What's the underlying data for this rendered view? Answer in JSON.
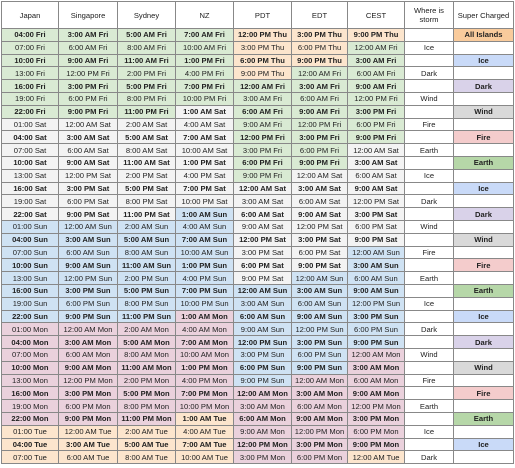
{
  "header": {
    "columns": [
      "Japan",
      "Singapore",
      "Sydney",
      "NZ",
      "PDT",
      "EDT",
      "CEST",
      "Where is storm",
      "Super Charged"
    ]
  },
  "day_colors": {
    "Thu": "#fce5cd",
    "Fri": "#d9ead3",
    "Sat": "#f3f3f3",
    "Sun": "#cfe2f3",
    "Mon": "#ead1dc",
    "Tue": "#fce5cd"
  },
  "super_colors": {
    "All Islands": "#f9cb9c",
    "Ice": "#c9daf8",
    "Dark": "#d9d2e9",
    "Wind": "#d9d9d9",
    "Fire": "#f4cccc",
    "Earth": "#b6d7a8"
  },
  "table": {
    "rows": [
      [
        "04:00 Fri",
        "3:00 AM Fri",
        "5:00 AM Fri",
        "7:00 AM Fri",
        "12:00 PM Thu",
        "3:00 PM Thu",
        "9:00 PM Thu",
        null,
        "All Islands"
      ],
      [
        "07:00 Fri",
        "6:00 AM Fri",
        "8:00 AM Fri",
        "10:00 AM Fri",
        "3:00 PM Thu",
        "6:00 PM Thu",
        "12:00 AM Fri",
        "Ice",
        null
      ],
      [
        "10:00 Fri",
        "9:00 AM Fri",
        "11:00 AM Fri",
        "1:00 PM Fri",
        "6:00 PM Thu",
        "9:00 PM Thu",
        "3:00 AM Fri",
        null,
        "Ice"
      ],
      [
        "13:00 Fri",
        "12:00 PM Fri",
        "2:00 PM Fri",
        "4:00 PM Fri",
        "9:00 PM Thu",
        "12:00 AM Fri",
        "6:00 AM Fri",
        "Dark",
        null
      ],
      [
        "16:00 Fri",
        "3:00 PM Fri",
        "5:00 PM Fri",
        "7:00 PM Fri",
        "12:00 AM Fri",
        "3:00 AM Fri",
        "9:00 AM Fri",
        null,
        "Dark"
      ],
      [
        "19:00 Fri",
        "6:00 PM Fri",
        "8:00 PM Fri",
        "10:00 PM Fri",
        "3:00 AM Fri",
        "6:00 AM Fri",
        "12:00 PM Fri",
        "Wind",
        null
      ],
      [
        "22:00 Fri",
        "9:00 PM Fri",
        "11:00 PM Fri",
        "1:00 AM Sat",
        "6:00 AM Fri",
        "9:00 AM Fri",
        "3:00 PM Fri",
        null,
        "Wind"
      ],
      [
        "01:00 Sat",
        "12:00 AM Sat",
        "2:00 AM Sat",
        "4:00 AM Sat",
        "9:00 AM Fri",
        "12:00 PM Fri",
        "6:00 PM Fri",
        "Fire",
        null
      ],
      [
        "04:00 Sat",
        "3:00 AM Sat",
        "5:00 AM Sat",
        "7:00 AM Sat",
        "12:00 PM Fri",
        "3:00 PM Fri",
        "9:00 PM Fri",
        null,
        "Fire"
      ],
      [
        "07:00 Sat",
        "6:00 AM Sat",
        "8:00 AM Sat",
        "10:00 AM Sat",
        "3:00 PM Fri",
        "6:00 PM Fri",
        "12:00 AM Sat",
        "Earth",
        null
      ],
      [
        "10:00 Sat",
        "9:00 AM Sat",
        "11:00 AM Sat",
        "1:00 PM Sat",
        "6:00 PM Fri",
        "9:00 PM Fri",
        "3:00 AM Sat",
        null,
        "Earth"
      ],
      [
        "13:00 Sat",
        "12:00 PM Sat",
        "2:00 PM Sat",
        "4:00 PM Sat",
        "9:00 PM Fri",
        "12:00 AM Sat",
        "6:00 AM Sat",
        "Ice",
        null
      ],
      [
        "16:00 Sat",
        "3:00 PM Sat",
        "5:00 PM Sat",
        "7:00 PM Sat",
        "12:00 AM Sat",
        "3:00 AM Sat",
        "9:00 AM Sat",
        null,
        "Ice"
      ],
      [
        "19:00 Sat",
        "6:00 PM Sat",
        "8:00 PM Sat",
        "10:00 PM Sat",
        "3:00 AM Sat",
        "6:00 AM Sat",
        "12:00 PM Sat",
        "Dark",
        null
      ],
      [
        "22:00 Sat",
        "9:00 PM Sat",
        "11:00 PM Sat",
        "1:00 AM Sun",
        "6:00 AM Sat",
        "9:00 AM Sat",
        "3:00 PM Sat",
        null,
        "Dark"
      ],
      [
        "01:00 Sun",
        "12:00 AM Sun",
        "2:00 AM Sun",
        "4:00 AM Sun",
        "9:00 AM Sat",
        "12:00 PM Sat",
        "6:00 PM Sat",
        "Wind",
        null
      ],
      [
        "04:00 Sun",
        "3:00 AM Sun",
        "5:00 AM Sun",
        "7:00 AM Sun",
        "12:00 PM Sat",
        "3:00 PM Sat",
        "9:00 PM Sat",
        null,
        "Wind"
      ],
      [
        "07:00 Sun",
        "6:00 AM Sun",
        "8:00 AM Sun",
        "10:00 AM Sun",
        "3:00 PM Sat",
        "6:00 PM Sat",
        "12:00 AM Sun",
        "Fire",
        null
      ],
      [
        "10:00 Sun",
        "9:00 AM Sun",
        "11:00 AM Sun",
        "1:00 PM Sun",
        "6:00 PM Sat",
        "9:00 PM Sat",
        "3:00 AM Sun",
        null,
        "Fire"
      ],
      [
        "13:00 Sun",
        "12:00 PM Sun",
        "2:00 PM Sun",
        "4:00 PM Sun",
        "9:00 PM Sat",
        "12:00 AM Sun",
        "6:00 AM Sun",
        "Earth",
        null
      ],
      [
        "16:00 Sun",
        "3:00 PM Sun",
        "5:00 PM Sun",
        "7:00 PM Sun",
        "12:00 AM Sun",
        "3:00 AM Sun",
        "9:00 AM Sun",
        null,
        "Earth"
      ],
      [
        "19:00 Sun",
        "6:00 PM Sun",
        "8:00 PM Sun",
        "10:00 PM Sun",
        "3:00 AM Sun",
        "6:00 AM Sun",
        "12:00 PM Sun",
        "Ice",
        null
      ],
      [
        "22:00 Sun",
        "9:00 PM Sun",
        "11:00 PM Sun",
        "1:00 AM Mon",
        "6:00 AM Sun",
        "9:00 AM Sun",
        "3:00 PM Sun",
        null,
        "Ice"
      ],
      [
        "01:00 Mon",
        "12:00 AM Mon",
        "2:00 AM Mon",
        "4:00 AM Mon",
        "9:00 AM Sun",
        "12:00 PM Sun",
        "6:00 PM Sun",
        "Dark",
        null
      ],
      [
        "04:00 Mon",
        "3:00 AM Mon",
        "5:00 AM Mon",
        "7:00 AM Mon",
        "12:00 PM Sun",
        "3:00 PM Sun",
        "9:00 PM Sun",
        null,
        "Dark"
      ],
      [
        "07:00 Mon",
        "6:00 AM Mon",
        "8:00 AM Mon",
        "10:00 AM Mon",
        "3:00 PM Sun",
        "6:00 PM Sun",
        "12:00 AM Mon",
        "Wind",
        null
      ],
      [
        "10:00 Mon",
        "9:00 AM Mon",
        "11:00 AM Mon",
        "1:00 PM Mon",
        "6:00 PM Sun",
        "9:00 PM Sun",
        "3:00 AM Mon",
        null,
        "Wind"
      ],
      [
        "13:00 Mon",
        "12:00 PM Mon",
        "2:00 PM Mon",
        "4:00 PM Mon",
        "9:00 PM Sun",
        "12:00 AM Mon",
        "6:00 AM Mon",
        "Fire",
        null
      ],
      [
        "16:00 Mon",
        "3:00 PM Mon",
        "5:00 PM Mon",
        "7:00 PM Mon",
        "12:00 AM Mon",
        "3:00 AM Mon",
        "9:00 AM Mon",
        null,
        "Fire"
      ],
      [
        "19:00 Mon",
        "6:00 PM Mon",
        "8:00 PM Mon",
        "10:00 PM Mon",
        "3:00 AM Mon",
        "6:00 AM Mon",
        "12:00 PM Mon",
        "Earth",
        null
      ],
      [
        "22:00 Mon",
        "9:00 PM Mon",
        "11:00 PM Mon",
        "1:00 AM Tue",
        "6:00 AM Mon",
        "9:00 AM Mon",
        "3:00 PM Mon",
        null,
        "Earth"
      ],
      [
        "01:00 Tue",
        "12:00 AM Tue",
        "2:00 AM Tue",
        "4:00 AM Tue",
        "9:00 AM Mon",
        "12:00 PM Mon",
        "6:00 PM Mon",
        "Ice",
        null
      ],
      [
        "04:00 Tue",
        "3:00 AM Tue",
        "5:00 AM Tue",
        "7:00 AM Tue",
        "12:00 PM Mon",
        "3:00 PM Mon",
        "9:00 PM Mon",
        null,
        "Ice"
      ],
      [
        "07:00 Tue",
        "6:00 AM Tue",
        "8:00 AM Tue",
        "10:00 AM Tue",
        "3:00 PM Mon",
        "6:00 PM Mon",
        "12:00 AM Tue",
        "Dark",
        null
      ]
    ]
  }
}
